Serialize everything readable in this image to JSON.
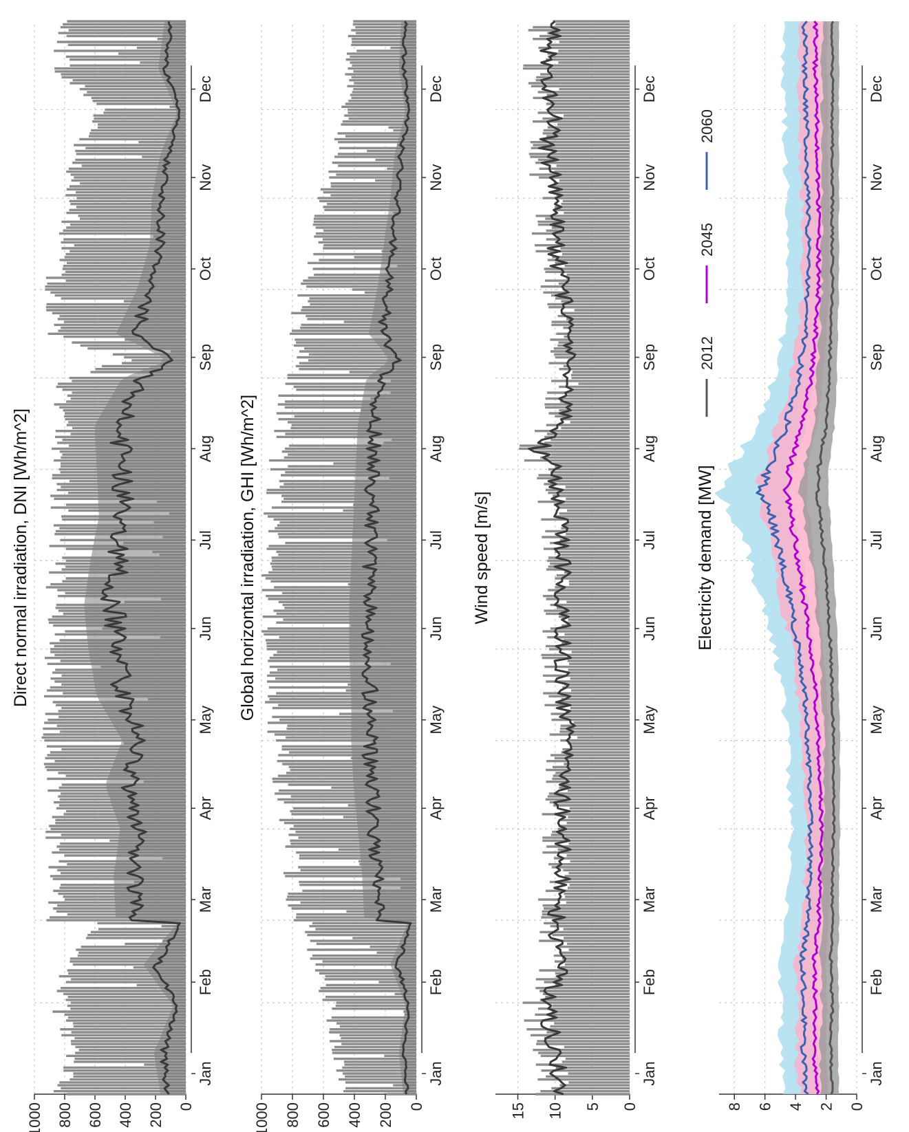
{
  "chart_data": [
    {
      "type": "area",
      "title": "Direct normal irradiation, DNI [Wh/m^2]",
      "x_unit": "day of year",
      "months": [
        "Jan",
        "Feb",
        "Mar",
        "Apr",
        "May",
        "Jun",
        "Jul",
        "Aug",
        "Sep",
        "Oct",
        "Nov",
        "Dec"
      ],
      "yticks": [
        0,
        200,
        400,
        600,
        800,
        1000
      ],
      "ylim": [
        0,
        1000
      ],
      "grid": true,
      "series": [
        {
          "role": "hourly",
          "color": "#8c8c8c",
          "x": [
            1,
            15,
            31,
            45,
            59,
            60,
            75,
            91,
            106,
            121,
            136,
            152,
            167,
            182,
            197,
            213,
            228,
            244,
            250,
            259,
            274,
            289,
            305,
            320,
            334,
            349,
            365
          ],
          "max": [
            880,
            800,
            900,
            820,
            600,
            920,
            920,
            930,
            920,
            960,
            950,
            940,
            930,
            920,
            900,
            900,
            880,
            880,
            420,
            940,
            950,
            850,
            800,
            800,
            600,
            900,
            880
          ]
        },
        {
          "role": "daily mean",
          "color": "#3a3a3a",
          "x": [
            1,
            15,
            31,
            45,
            59,
            60,
            75,
            91,
            106,
            121,
            136,
            152,
            167,
            182,
            197,
            213,
            228,
            244,
            250,
            259,
            274,
            289,
            305,
            320,
            334,
            349,
            365
          ],
          "y": [
            120,
            150,
            60,
            200,
            40,
            330,
            340,
            310,
            380,
            300,
            420,
            460,
            480,
            450,
            410,
            420,
            430,
            300,
            80,
            330,
            230,
            170,
            160,
            120,
            40,
            130,
            100
          ]
        }
      ]
    },
    {
      "type": "area",
      "title": "Global horizontal irradiation, GHI [Wh/m^2]",
      "months": [
        "Jan",
        "Feb",
        "Mar",
        "Apr",
        "May",
        "Jun",
        "Jul",
        "Aug",
        "Sep",
        "Oct",
        "Nov",
        "Dec"
      ],
      "yticks": [
        0,
        200,
        400,
        600,
        800,
        1000
      ],
      "ylim": [
        0,
        1000
      ],
      "grid": true,
      "series": [
        {
          "role": "hourly",
          "color": "#8c8c8c",
          "x": [
            1,
            15,
            31,
            45,
            59,
            60,
            75,
            91,
            106,
            121,
            136,
            152,
            167,
            182,
            197,
            213,
            228,
            244,
            250,
            259,
            274,
            289,
            305,
            320,
            334,
            349,
            365
          ],
          "max": [
            480,
            550,
            600,
            700,
            750,
            840,
            870,
            900,
            930,
            960,
            980,
            1000,
            1000,
            1000,
            990,
            960,
            930,
            880,
            780,
            840,
            780,
            700,
            640,
            560,
            500,
            460,
            440
          ]
        },
        {
          "role": "daily mean",
          "color": "#3a3a3a",
          "x": [
            1,
            15,
            31,
            45,
            59,
            60,
            75,
            91,
            106,
            121,
            136,
            152,
            167,
            182,
            197,
            213,
            228,
            244,
            250,
            259,
            274,
            289,
            305,
            320,
            334,
            349,
            365
          ],
          "y": [
            60,
            80,
            50,
            120,
            40,
            240,
            250,
            270,
            290,
            300,
            300,
            310,
            310,
            300,
            290,
            280,
            270,
            230,
            120,
            220,
            180,
            150,
            120,
            100,
            50,
            80,
            70
          ]
        }
      ]
    },
    {
      "type": "area",
      "title": "Wind speed [m/s]",
      "months": [
        "Jan",
        "Feb",
        "Mar",
        "Apr",
        "May",
        "Jun",
        "Jul",
        "Aug",
        "Sep",
        "Oct",
        "Nov",
        "Dec"
      ],
      "yticks": [
        0,
        5,
        10,
        15
      ],
      "ylim": [
        0,
        18
      ],
      "grid": true,
      "series": [
        {
          "role": "hourly",
          "color": "#8c8c8c",
          "x": [
            1,
            15,
            31,
            45,
            59,
            75,
            91,
            106,
            121,
            136,
            152,
            167,
            182,
            197,
            213,
            220,
            228,
            244,
            259,
            274,
            289,
            305,
            320,
            334,
            349,
            365
          ],
          "max": [
            16,
            13,
            16,
            13,
            12,
            11,
            12,
            11,
            12,
            11,
            12,
            11,
            12,
            12,
            13,
            15,
            12,
            12,
            11,
            12,
            13,
            14,
            12,
            13,
            16,
            14
          ]
        },
        {
          "role": "daily mean",
          "color": "#3a3a3a",
          "x": [
            1,
            15,
            31,
            45,
            59,
            75,
            91,
            106,
            121,
            136,
            152,
            167,
            182,
            197,
            213,
            220,
            228,
            244,
            259,
            274,
            289,
            305,
            320,
            334,
            349,
            365
          ],
          "y": [
            9,
            10,
            11,
            9,
            10,
            9,
            9,
            9,
            8,
            9,
            9,
            9,
            9,
            9,
            10,
            12,
            9,
            8,
            8,
            9,
            10,
            10,
            11,
            10,
            11,
            10
          ]
        }
      ]
    },
    {
      "type": "line",
      "title": "Electricity demand [MW]",
      "months": [
        "Jan",
        "Feb",
        "Mar",
        "Apr",
        "May",
        "Jun",
        "Jul",
        "Aug",
        "Sep",
        "Oct",
        "Nov",
        "Dec"
      ],
      "yticks": [
        0,
        2,
        4,
        6,
        8
      ],
      "ylim": [
        0,
        9
      ],
      "grid": true,
      "legend": "top-right",
      "x": [
        1,
        15,
        31,
        45,
        59,
        75,
        91,
        106,
        121,
        136,
        152,
        167,
        182,
        197,
        205,
        213,
        228,
        244,
        259,
        274,
        289,
        305,
        320,
        334,
        349,
        365
      ],
      "series": [
        {
          "name": "2012",
          "color": "#555555",
          "band": "#9a9a9a",
          "values": [
            1.6,
            1.7,
            1.6,
            1.7,
            1.6,
            1.6,
            1.5,
            1.5,
            1.5,
            1.6,
            1.7,
            1.9,
            2.1,
            2.4,
            2.6,
            2.5,
            2.0,
            1.8,
            1.7,
            1.6,
            1.6,
            1.6,
            1.6,
            1.6,
            1.6,
            1.6
          ]
        },
        {
          "name": "2045",
          "color": "#b000d0",
          "band": "#ffaec9",
          "values": [
            2.6,
            2.8,
            2.7,
            2.8,
            2.5,
            2.4,
            2.3,
            2.4,
            2.5,
            2.7,
            3.0,
            3.4,
            3.8,
            4.3,
            4.6,
            4.4,
            3.6,
            3.0,
            2.7,
            2.5,
            2.5,
            2.5,
            2.6,
            2.6,
            2.7,
            2.7
          ]
        },
        {
          "name": "2060",
          "color": "#3a64b0",
          "band": "#a8dcec",
          "values": [
            3.3,
            3.5,
            3.4,
            3.6,
            3.2,
            3.1,
            3.0,
            3.1,
            3.2,
            3.4,
            3.8,
            4.3,
            4.9,
            5.6,
            6.3,
            5.8,
            4.6,
            3.8,
            3.4,
            3.2,
            3.2,
            3.2,
            3.3,
            3.3,
            3.4,
            3.4
          ]
        }
      ]
    }
  ]
}
